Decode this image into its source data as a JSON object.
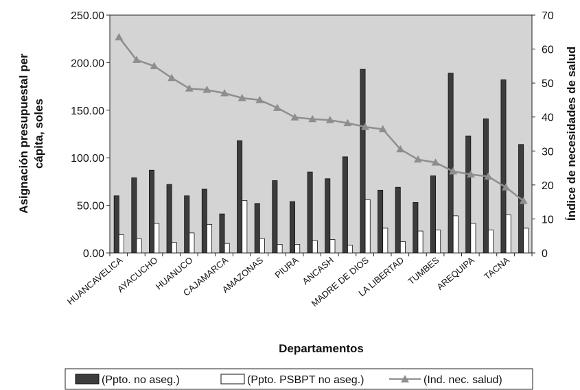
{
  "chart_data": {
    "type": "bar",
    "title": "",
    "xlabel": "Departamentos",
    "ylabel": "Asignación  presupuestal per cápita, soles",
    "ylabel_lines": [
      "Asignación  presupuestal per",
      "cápita, soles"
    ],
    "y2label": "Índice de necesidades de salud",
    "ylim": [
      0,
      250
    ],
    "y_ticks": [
      "0.00",
      "50.00",
      "100.00",
      "150.00",
      "200.00",
      "250.00"
    ],
    "y2lim": [
      0,
      70
    ],
    "y2_ticks": [
      "0",
      "10",
      "20",
      "30",
      "40",
      "50",
      "60",
      "70"
    ],
    "grid": false,
    "legend_position": "bottom",
    "categories": [
      "HUANCAVELICA",
      "",
      "AYACUCHO",
      "",
      "HUANUCO",
      "",
      "CAJAMARCA",
      "",
      "AMAZONAS",
      "",
      "PIURA",
      "",
      "ANCASH",
      "",
      "MADRE DE DIOS",
      "",
      "LA LIBERTAD",
      "",
      "TUMBES",
      "",
      "AREQUIPA",
      "",
      "TACNA",
      ""
    ],
    "series": [
      {
        "name": "(Ppto. no aseg.)",
        "type": "bar",
        "axis": "left",
        "values": [
          60,
          79,
          87,
          72,
          60,
          67,
          41,
          118,
          52,
          76,
          54,
          85,
          78,
          101,
          193,
          66,
          69,
          53,
          81,
          189,
          123,
          141,
          182,
          114
        ]
      },
      {
        "name": "(Ppto. PSBPT no aseg.)",
        "type": "bar",
        "axis": "left",
        "values": [
          19,
          15,
          31,
          11,
          21,
          30,
          10,
          55,
          15,
          9,
          9,
          13,
          14,
          8,
          56,
          26,
          12,
          23,
          24,
          39,
          31,
          24,
          40,
          26
        ]
      },
      {
        "name": "(Ind. nec.  salud)",
        "type": "line",
        "axis": "right",
        "values": [
          63.5,
          56.8,
          55.0,
          51.5,
          48.4,
          48.0,
          47.0,
          45.6,
          45.0,
          42.7,
          39.9,
          39.4,
          39.1,
          38.2,
          37.1,
          36.4,
          30.5,
          27.5,
          26.6,
          24.0,
          23.1,
          22.5,
          19.3,
          15.3
        ]
      }
    ],
    "colors": {
      "plot_bg": "#d4d4d4",
      "bar_dark": "#3c3c3c",
      "bar_light": "#ffffff",
      "line": "#8e8e8e"
    }
  }
}
